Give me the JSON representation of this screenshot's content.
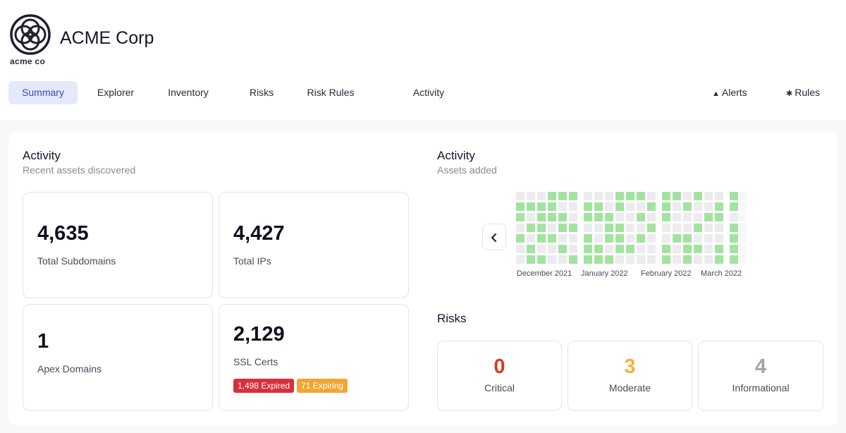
{
  "brand": {
    "company": "ACME Corp",
    "logo_text": "acme co"
  },
  "nav": {
    "tabs": [
      {
        "label": "Summary",
        "active": true
      },
      {
        "label": "Explorer",
        "active": false
      },
      {
        "label": "Inventory",
        "active": false
      },
      {
        "label": "Risks",
        "active": false
      },
      {
        "label": "Risk Rules",
        "active": false
      },
      {
        "label": "Activity",
        "active": false
      }
    ],
    "alerts": {
      "label": "Alerts",
      "icon": "warning-triangle-icon"
    },
    "rules": {
      "label": "Rules",
      "icon": "gear-icon"
    }
  },
  "activity": {
    "title": "Activity",
    "subtitle": "Recent assets discovered",
    "stats": [
      {
        "value": "4,635",
        "label": "Total Subdomains"
      },
      {
        "value": "4,427",
        "label": "Total IPs"
      },
      {
        "value": "1",
        "label": "Apex Domains"
      },
      {
        "value": "2,129",
        "label": "SSL Certs"
      }
    ],
    "ssl_badges": {
      "expired": "1,498 Expired",
      "expiring": "71 Expiring"
    }
  },
  "assets_chart": {
    "title": "Activity",
    "subtitle": "Assets added",
    "months": [
      "December 2021",
      "January 2022",
      "February 2022",
      "March 2022"
    ],
    "colors": {
      "empty": "#ececef",
      "filled": "#a3e3a0",
      "faded": "#f7f7f9"
    }
  },
  "risks": {
    "title": "Risks",
    "items": [
      {
        "value": "0",
        "label": "Critical",
        "color": "#d93a20"
      },
      {
        "value": "3",
        "label": "Moderate",
        "color": "#f2b33d"
      },
      {
        "value": "4",
        "label": "Informational",
        "color": "#a3a3ad"
      }
    ]
  }
}
